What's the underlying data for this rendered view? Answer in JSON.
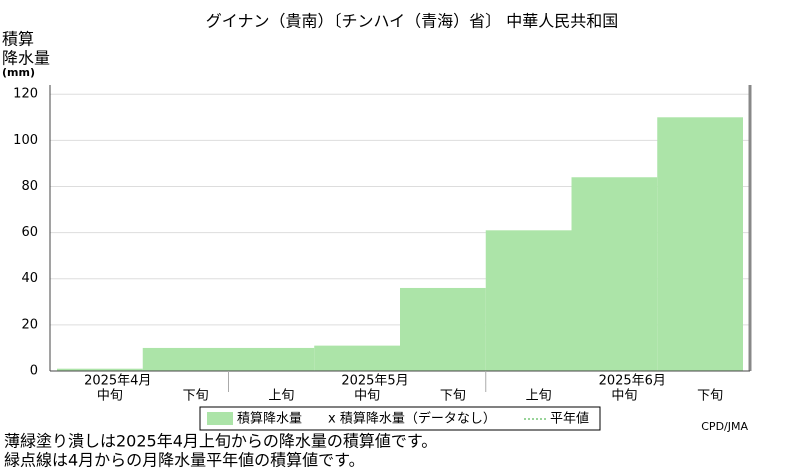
{
  "chart_data": {
    "type": "area-step",
    "title": "グイナン（貴南）〔チンハイ（青海）省〕 中華人民共和国",
    "y_label": [
      "積算",
      "降水量",
      "(mm)"
    ],
    "categories": [
      "中旬",
      "下旬",
      "上旬",
      "中旬",
      "下旬",
      "上旬",
      "中旬",
      "下旬"
    ],
    "month_labels": [
      "2025年4月",
      "2025年5月",
      "2025年6月"
    ],
    "series": [
      {
        "name": "積算降水量",
        "color": "#ace4a8",
        "values": [
          1,
          10,
          10,
          11,
          36,
          61,
          84,
          110
        ]
      }
    ],
    "legend_extra": [
      "x 積算降水量（データなし）",
      "平年値"
    ],
    "ylim": [
      0,
      124
    ],
    "yticks": [
      0,
      20,
      40,
      60,
      80,
      100,
      120
    ],
    "grid": true,
    "source": "CPD/JMA",
    "notes": [
      "薄緑塗り潰しは2025年4月上旬からの降水量の積算値です。",
      "緑点線は4月からの月降水量平年値の積算値です。"
    ]
  }
}
